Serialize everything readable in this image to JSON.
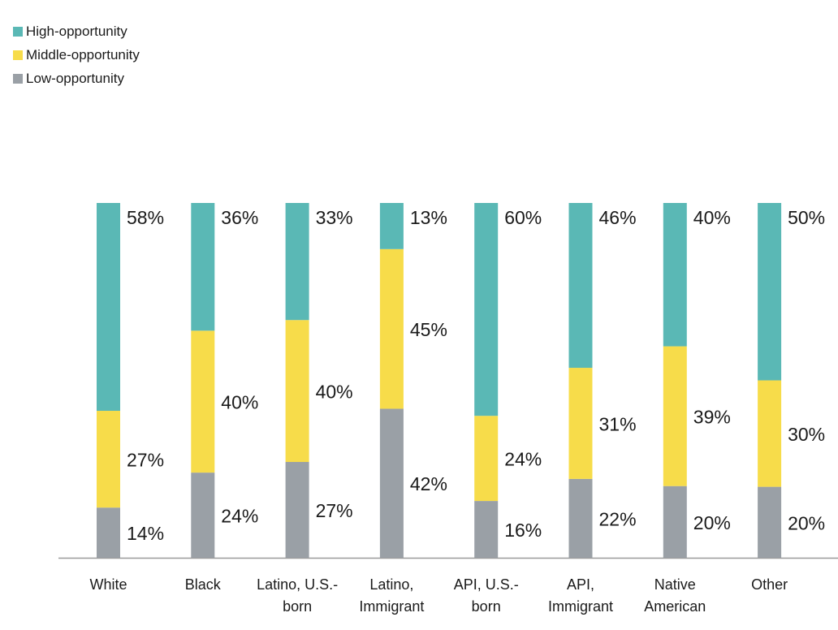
{
  "chart_data": {
    "type": "bar",
    "stacked": true,
    "title": "",
    "xlabel": "",
    "ylabel": "",
    "ylim": [
      0,
      100
    ],
    "grid": false,
    "legend_position": "top-left",
    "categories": [
      [
        "White"
      ],
      [
        "Black"
      ],
      [
        "Latino, U.S.-",
        "born"
      ],
      [
        "Latino,",
        "Immigrant"
      ],
      [
        "API, U.S.-",
        "born"
      ],
      [
        "API,",
        "Immigrant"
      ],
      [
        "Native",
        "American"
      ],
      [
        "Other"
      ]
    ],
    "series": [
      {
        "name": "High-opportunity",
        "color": "#5ab8b5",
        "values": [
          58,
          36,
          33,
          13,
          60,
          46,
          40,
          50
        ],
        "labels": [
          "58%",
          "36%",
          "33%",
          "13%",
          "60%",
          "46%",
          "40%",
          "50%"
        ]
      },
      {
        "name": "Middle-opportunity",
        "color": "#f7dc4a",
        "values": [
          27,
          40,
          40,
          45,
          24,
          31,
          39,
          30
        ],
        "labels": [
          "27%",
          "40%",
          "40%",
          "45%",
          "24%",
          "31%",
          "39%",
          "30%"
        ]
      },
      {
        "name": "Low-opportunity",
        "color": "#9aa0a6",
        "values": [
          14,
          24,
          27,
          42,
          16,
          22,
          20,
          20
        ],
        "labels": [
          "14%",
          "24%",
          "27%",
          "42%",
          "16%",
          "22%",
          "20%",
          "20%"
        ]
      }
    ]
  }
}
